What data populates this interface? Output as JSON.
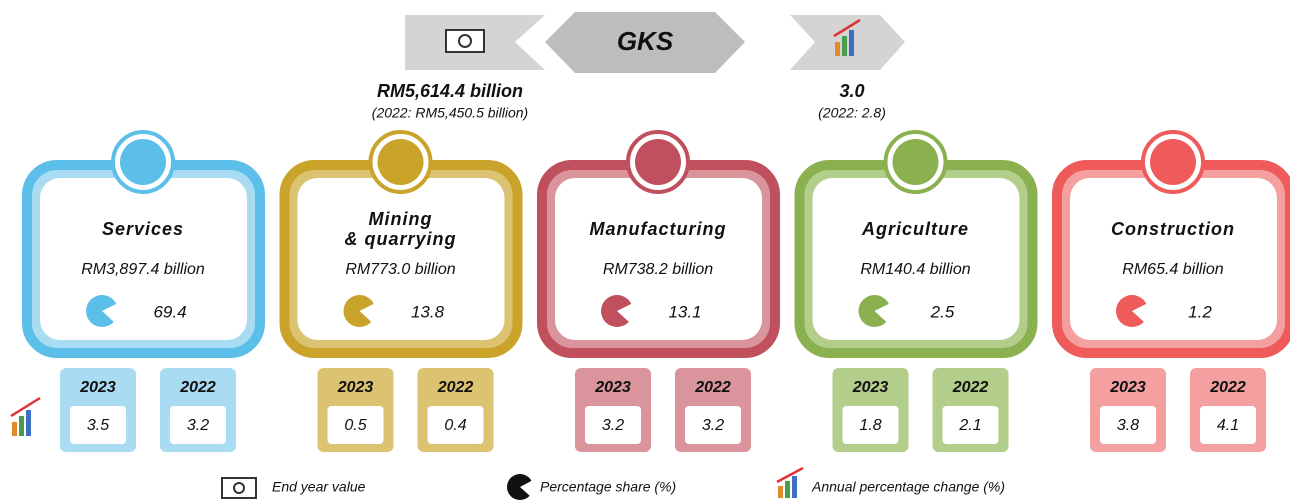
{
  "header": {
    "title": "GKS",
    "value": "RM5,614.4 billion",
    "value_prev": "(2022: RM5,450.5 billion)",
    "change": "3.0",
    "change_prev": "(2022: 2.8)"
  },
  "sectors": [
    {
      "name": [
        "Services"
      ],
      "value": "RM3,897.4 billion",
      "share": "69.4",
      "color": "#5bbfea",
      "light": "#a9dcf3",
      "years": [
        {
          "year": "2023",
          "change": "3.5"
        },
        {
          "year": "2022",
          "change": "3.2"
        }
      ]
    },
    {
      "name": [
        "Mining",
        "& quarrying"
      ],
      "value": "RM773.0 billion",
      "share": "13.8",
      "color": "#c9a32a",
      "light": "#dcc371",
      "years": [
        {
          "year": "2023",
          "change": "0.5"
        },
        {
          "year": "2022",
          "change": "0.4"
        }
      ]
    },
    {
      "name": [
        "Manufacturing"
      ],
      "value": "RM738.2 billion",
      "share": "13.1",
      "color": "#c0505e",
      "light": "#d9949c",
      "years": [
        {
          "year": "2023",
          "change": "3.2"
        },
        {
          "year": "2022",
          "change": "3.2"
        }
      ]
    },
    {
      "name": [
        "Agriculture"
      ],
      "value": "RM140.4 billion",
      "share": "2.5",
      "color": "#8bb04f",
      "light": "#b3cd8a",
      "years": [
        {
          "year": "2023",
          "change": "1.8"
        },
        {
          "year": "2022",
          "change": "2.1"
        }
      ]
    },
    {
      "name": [
        "Construction"
      ],
      "value": "RM65.4 billion",
      "share": "1.2",
      "color": "#ef5a5a",
      "light": "#f4a0a0",
      "years": [
        {
          "year": "2023",
          "change": "3.8"
        },
        {
          "year": "2022",
          "change": "4.1"
        }
      ]
    }
  ],
  "legend": [
    "End year value",
    "Percentage share (%)",
    "Annual percentage change (%)"
  ]
}
